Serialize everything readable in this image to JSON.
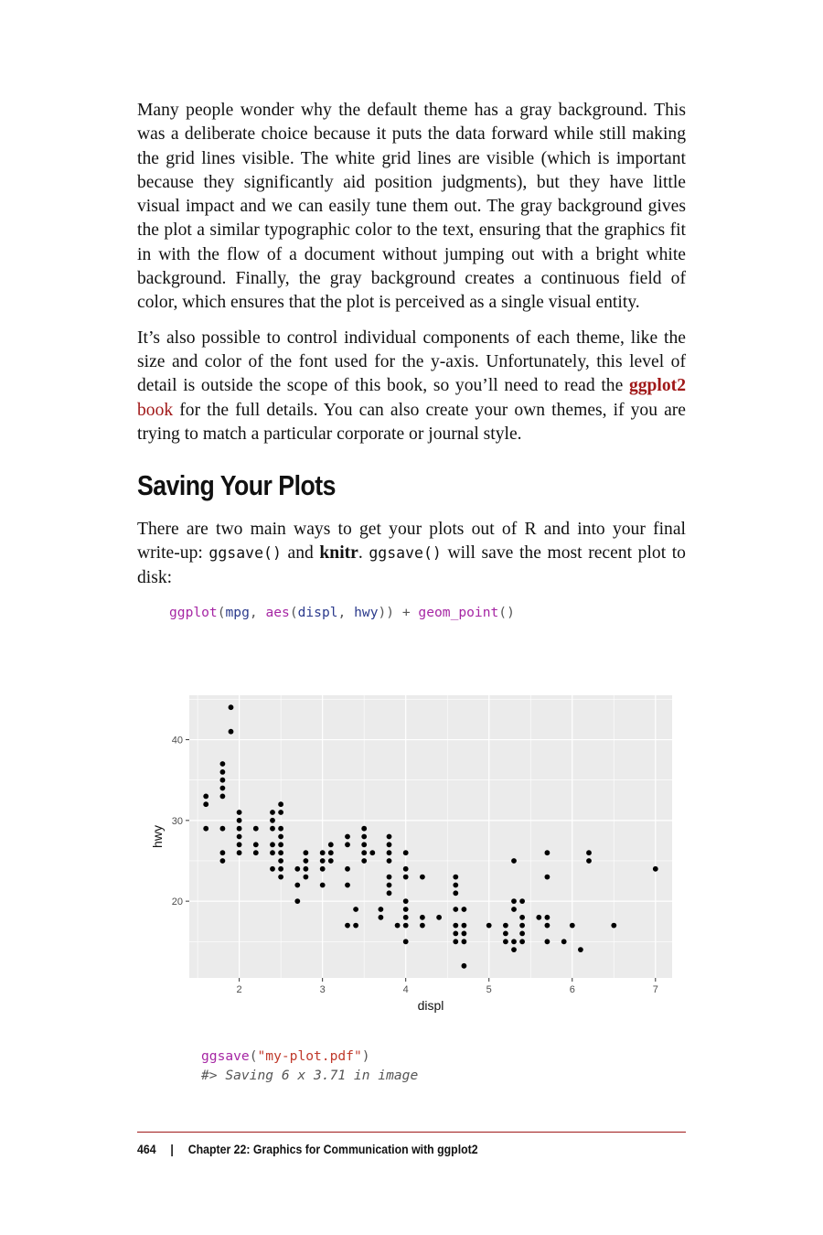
{
  "paragraphs": {
    "p1": "Many people wonder why the default theme has a gray background. This was a deliberate choice because it puts the data forward while still making the grid lines visible. The white grid lines are visible (which is important because they significantly aid position judg­ments), but they have little visual impact and we can easily tune them out. The gray background gives the plot a similar typographic color to the text, ensuring that the graphics fit in with the flow of a document without jumping out with a bright white background. Finally, the gray background creates a continuous field of color, which ensures that the plot is perceived as a single visual entity.",
    "p2_before": "It’s also possible to control individual components of each theme, like the size and color of the font used for the y-axis. Unfortunately, this level of detail is outside the scope of this book, so you’ll need to read the ",
    "p2_link_bold": "ggplot2",
    "p2_link_rest": " book",
    "p2_after": " for the full details. You can also create your own themes, if you are trying to match a particular corporate or journal style.",
    "p3_a": "There are two main ways to get your plots out of R and into your final write-up: ",
    "p3_code1": "ggsave()",
    "p3_b": " and ",
    "p3_bold": "knitr",
    "p3_c": ". ",
    "p3_code2": "ggsave()",
    "p3_d": " will save the most recent plot to disk:"
  },
  "section_title": "Saving Your Plots",
  "code1": {
    "fn": "ggplot",
    "open": "(",
    "arg1": "mpg",
    "comma": ", ",
    "fn2": "aes",
    "open2": "(",
    "arg2": "displ",
    "comma2": ", ",
    "arg3": "hwy",
    "close2": "))",
    "plus": " + ",
    "fn3": "geom_point",
    "close3": "()"
  },
  "code2": {
    "fn": "ggsave",
    "open": "(",
    "str": "\"my-plot.pdf\"",
    "close": ")",
    "output": "#> Saving 6 x 3.71 in image"
  },
  "footer": {
    "page_number": "464",
    "separator": "|",
    "chapter": "Chapter 22: Graphics for Communication with ggplot2"
  },
  "chart_data": {
    "type": "scatter",
    "xlabel": "displ",
    "ylabel": "hwy",
    "xlim": [
      1.4,
      7.2
    ],
    "ylim": [
      10.5,
      45.5
    ],
    "xticks": [
      2,
      3,
      4,
      5,
      6,
      7
    ],
    "yticks": [
      20,
      30,
      40
    ],
    "grid": true,
    "colors": {
      "panel": "#ebebeb",
      "grid": "#ffffff",
      "point": "#000000",
      "axis_text": "#4d4d4d"
    },
    "points": [
      [
        1.6,
        33
      ],
      [
        1.6,
        32
      ],
      [
        1.6,
        29
      ],
      [
        1.8,
        37
      ],
      [
        1.8,
        36
      ],
      [
        1.8,
        35
      ],
      [
        1.8,
        34
      ],
      [
        1.8,
        33
      ],
      [
        1.8,
        29
      ],
      [
        1.8,
        26
      ],
      [
        1.8,
        25
      ],
      [
        1.9,
        44
      ],
      [
        1.9,
        41
      ],
      [
        2.0,
        31
      ],
      [
        2.0,
        30
      ],
      [
        2.0,
        29
      ],
      [
        2.0,
        28
      ],
      [
        2.0,
        27
      ],
      [
        2.0,
        26
      ],
      [
        2.2,
        29
      ],
      [
        2.2,
        27
      ],
      [
        2.2,
        26
      ],
      [
        2.4,
        31
      ],
      [
        2.4,
        30
      ],
      [
        2.4,
        29
      ],
      [
        2.4,
        27
      ],
      [
        2.4,
        26
      ],
      [
        2.4,
        24
      ],
      [
        2.5,
        32
      ],
      [
        2.5,
        31
      ],
      [
        2.5,
        29
      ],
      [
        2.5,
        28
      ],
      [
        2.5,
        27
      ],
      [
        2.5,
        26
      ],
      [
        2.5,
        25
      ],
      [
        2.5,
        24
      ],
      [
        2.5,
        23
      ],
      [
        2.7,
        24
      ],
      [
        2.7,
        22
      ],
      [
        2.7,
        20
      ],
      [
        2.8,
        26
      ],
      [
        2.8,
        25
      ],
      [
        2.8,
        24
      ],
      [
        2.8,
        23
      ],
      [
        3.0,
        26
      ],
      [
        3.0,
        25
      ],
      [
        3.0,
        24
      ],
      [
        3.0,
        22
      ],
      [
        3.1,
        27
      ],
      [
        3.1,
        26
      ],
      [
        3.1,
        25
      ],
      [
        3.3,
        28
      ],
      [
        3.3,
        27
      ],
      [
        3.3,
        24
      ],
      [
        3.3,
        22
      ],
      [
        3.3,
        17
      ],
      [
        3.4,
        19
      ],
      [
        3.4,
        17
      ],
      [
        3.5,
        29
      ],
      [
        3.5,
        28
      ],
      [
        3.5,
        27
      ],
      [
        3.5,
        26
      ],
      [
        3.5,
        25
      ],
      [
        3.6,
        26
      ],
      [
        3.7,
        19
      ],
      [
        3.7,
        18
      ],
      [
        3.8,
        28
      ],
      [
        3.8,
        27
      ],
      [
        3.8,
        26
      ],
      [
        3.8,
        25
      ],
      [
        3.8,
        23
      ],
      [
        3.8,
        22
      ],
      [
        3.8,
        21
      ],
      [
        3.9,
        17
      ],
      [
        4.0,
        26
      ],
      [
        4.0,
        24
      ],
      [
        4.0,
        23
      ],
      [
        4.0,
        20
      ],
      [
        4.0,
        19
      ],
      [
        4.0,
        18
      ],
      [
        4.0,
        17
      ],
      [
        4.0,
        15
      ],
      [
        4.2,
        23
      ],
      [
        4.2,
        18
      ],
      [
        4.2,
        17
      ],
      [
        4.4,
        18
      ],
      [
        4.6,
        23
      ],
      [
        4.6,
        22
      ],
      [
        4.6,
        21
      ],
      [
        4.6,
        19
      ],
      [
        4.6,
        17
      ],
      [
        4.6,
        16
      ],
      [
        4.6,
        15
      ],
      [
        4.7,
        19
      ],
      [
        4.7,
        17
      ],
      [
        4.7,
        16
      ],
      [
        4.7,
        15
      ],
      [
        4.7,
        12
      ],
      [
        5.0,
        17
      ],
      [
        5.2,
        17
      ],
      [
        5.2,
        16
      ],
      [
        5.2,
        15
      ],
      [
        5.3,
        25
      ],
      [
        5.3,
        20
      ],
      [
        5.3,
        19
      ],
      [
        5.3,
        15
      ],
      [
        5.3,
        14
      ],
      [
        5.4,
        20
      ],
      [
        5.4,
        18
      ],
      [
        5.4,
        17
      ],
      [
        5.4,
        16
      ],
      [
        5.4,
        15
      ],
      [
        5.6,
        18
      ],
      [
        5.7,
        26
      ],
      [
        5.7,
        23
      ],
      [
        5.7,
        18
      ],
      [
        5.7,
        17
      ],
      [
        5.7,
        15
      ],
      [
        5.9,
        15
      ],
      [
        6.0,
        17
      ],
      [
        6.1,
        14
      ],
      [
        6.2,
        26
      ],
      [
        6.2,
        25
      ],
      [
        6.5,
        17
      ],
      [
        7.0,
        24
      ]
    ]
  }
}
